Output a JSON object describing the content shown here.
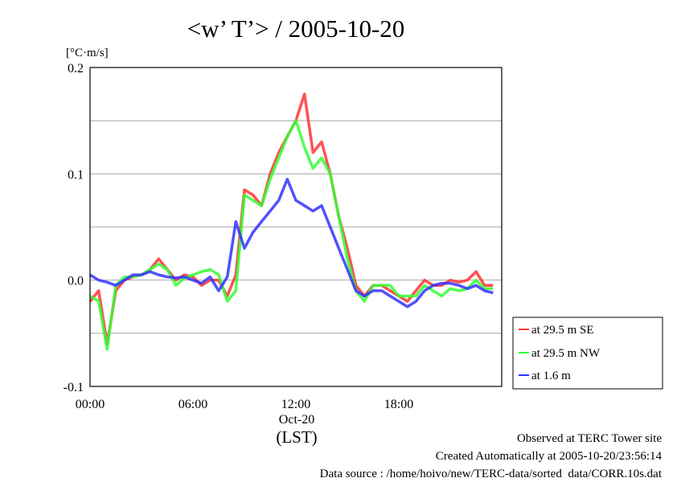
{
  "chart_data": {
    "type": "line",
    "title": "<w’ T’> / 2005-10-20",
    "ylabel": "[°C·m/s]",
    "xlabel": "(LST)",
    "x_sublabel": "Oct-20",
    "xlim": [
      "00:00",
      "24:00"
    ],
    "ylim": [
      -0.1,
      0.2
    ],
    "x_ticks": [
      "00:00",
      "06:00",
      "12:00",
      "18:00"
    ],
    "y_ticks": [
      "-0.1",
      "0.0",
      "0.1",
      "0.2"
    ],
    "grid": true,
    "legend_position": "right",
    "x": [
      "00:00",
      "00:30",
      "01:00",
      "01:30",
      "02:00",
      "02:30",
      "03:00",
      "03:30",
      "04:00",
      "04:30",
      "05:00",
      "05:30",
      "06:00",
      "06:30",
      "07:00",
      "07:30",
      "08:00",
      "08:30",
      "09:00",
      "09:30",
      "10:00",
      "10:30",
      "11:00",
      "11:30",
      "12:00",
      "12:30",
      "13:00",
      "13:30",
      "14:00",
      "14:30",
      "15:00",
      "15:30",
      "16:00",
      "16:30",
      "17:00",
      "17:30",
      "18:00",
      "18:30",
      "19:00",
      "19:30",
      "20:00",
      "20:30",
      "21:00",
      "21:30",
      "22:00",
      "22:30",
      "23:00",
      "23:30"
    ],
    "series": [
      {
        "name": "at 29.5 m SE",
        "color": "#ff3333",
        "values": [
          -0.02,
          -0.01,
          -0.06,
          -0.01,
          0.0,
          0.003,
          0.005,
          0.01,
          0.02,
          0.01,
          0.0,
          0.005,
          0.003,
          -0.005,
          0.0,
          0.0,
          -0.015,
          0.005,
          0.085,
          0.08,
          0.07,
          0.1,
          0.12,
          0.135,
          0.15,
          0.175,
          0.12,
          0.13,
          0.1,
          0.06,
          0.03,
          -0.005,
          -0.015,
          -0.005,
          -0.005,
          -0.01,
          -0.015,
          -0.02,
          -0.01,
          0.0,
          -0.005,
          -0.005,
          0.0,
          -0.002,
          0.0,
          0.008,
          -0.005,
          -0.005
        ]
      },
      {
        "name": "at 29.5 m NW",
        "color": "#33ff33",
        "values": [
          -0.015,
          -0.02,
          -0.065,
          -0.005,
          0.003,
          0.003,
          0.005,
          0.01,
          0.015,
          0.01,
          -0.005,
          0.002,
          0.005,
          0.008,
          0.01,
          0.005,
          -0.02,
          -0.01,
          0.08,
          0.075,
          0.07,
          0.095,
          0.115,
          0.135,
          0.15,
          0.125,
          0.105,
          0.115,
          0.1,
          0.06,
          0.02,
          -0.01,
          -0.02,
          -0.005,
          -0.005,
          -0.005,
          -0.015,
          -0.015,
          -0.015,
          -0.005,
          -0.01,
          -0.015,
          -0.008,
          -0.01,
          -0.008,
          0.0,
          -0.008,
          -0.008
        ]
      },
      {
        "name": "at 1.6 m",
        "color": "#3333ff",
        "values": [
          0.005,
          0.0,
          -0.002,
          -0.005,
          0.0,
          0.005,
          0.005,
          0.008,
          0.005,
          0.003,
          0.002,
          0.003,
          0.0,
          -0.003,
          0.003,
          -0.01,
          0.003,
          0.055,
          0.03,
          0.045,
          0.055,
          0.065,
          0.075,
          0.095,
          0.075,
          0.07,
          0.065,
          0.07,
          0.05,
          0.03,
          0.01,
          -0.01,
          -0.015,
          -0.01,
          -0.01,
          -0.015,
          -0.02,
          -0.025,
          -0.02,
          -0.01,
          -0.005,
          -0.003,
          -0.003,
          -0.005,
          -0.008,
          -0.005,
          -0.01,
          -0.012
        ]
      }
    ]
  },
  "footer": {
    "site": "Observed at TERC Tower site",
    "created": "Created Automatically at 2005-10-20/23:56:14",
    "source": "Data source : /home/hoivo/new/TERC-data/sorted_data/CORR.10s.dat"
  }
}
